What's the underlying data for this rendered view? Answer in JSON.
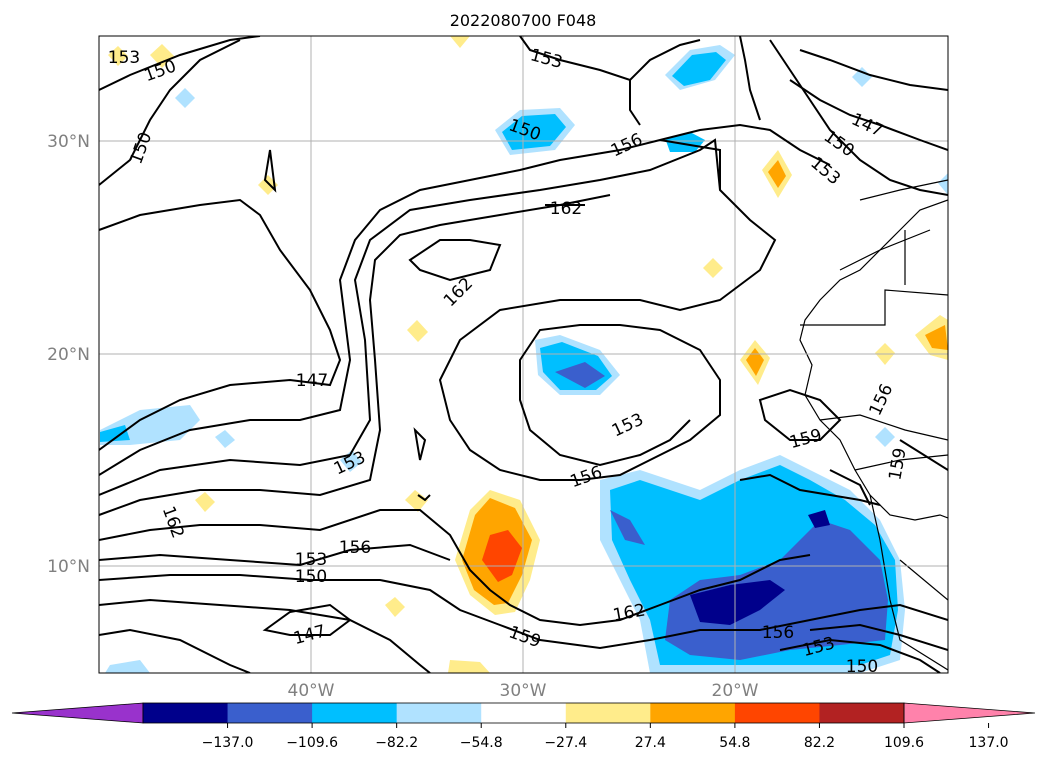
{
  "title": "2022080700 F048",
  "map": {
    "lat_labels": [
      "30°N",
      "20°N",
      "10°N"
    ],
    "lon_labels": [
      "40°W",
      "30°W",
      "20°W"
    ],
    "gridline_color": "#b0b0b0"
  },
  "contour_labels": [
    "153",
    "150",
    "150",
    "153",
    "150",
    "156",
    "162",
    "162",
    "147",
    "153",
    "162",
    "153",
    "150",
    "156",
    "147",
    "156",
    "153",
    "159",
    "162",
    "159",
    "156",
    "153",
    "150",
    "147",
    "150",
    "153",
    "156",
    "159"
  ],
  "colorbar": {
    "ticks": [
      "−137.0",
      "−109.6",
      "−82.2",
      "−54.8",
      "−27.4",
      "27.4",
      "54.8",
      "82.2",
      "109.6",
      "137.0"
    ],
    "colors": [
      "#9932cc",
      "#00008b",
      "#3a5fcd",
      "#00bfff",
      "#b0e2ff",
      "#ffffff",
      "#ffec8b",
      "#ffa500",
      "#ff4500",
      "#b22222",
      "#ff82ab"
    ]
  }
}
